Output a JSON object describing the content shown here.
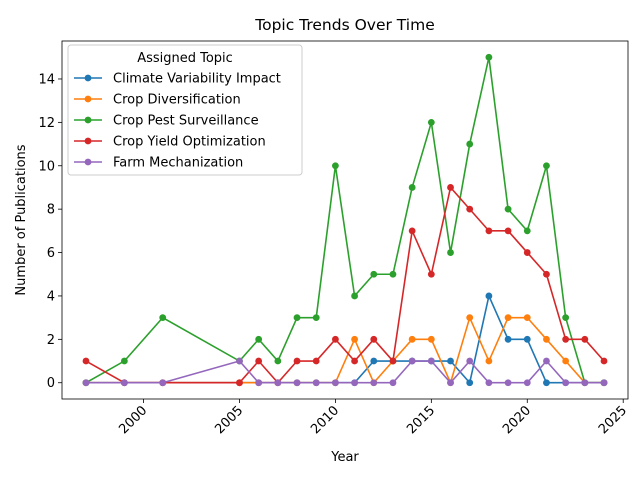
{
  "chart_data": {
    "type": "line",
    "title": "Topic Trends Over Time",
    "xlabel": "Year",
    "ylabel": "Number of Publications",
    "xlim": [
      1995.75,
      2025.25
    ],
    "ylim": [
      -0.75,
      15.75
    ],
    "xticks": [
      2000,
      2005,
      2010,
      2015,
      2020,
      2025
    ],
    "yticks": [
      0,
      2,
      4,
      6,
      8,
      10,
      12,
      14
    ],
    "legend": {
      "title": "Assigned Topic",
      "placement": "upper-left"
    },
    "grid": false,
    "series": [
      {
        "name": "Climate Variability Impact",
        "color": "#1f77b4",
        "x": [
          1997,
          1999,
          2001,
          2005,
          2006,
          2007,
          2008,
          2009,
          2010,
          2011,
          2012,
          2013,
          2014,
          2015,
          2016,
          2017,
          2018,
          2019,
          2020,
          2021,
          2022,
          2023,
          2024
        ],
        "y": [
          0,
          0,
          0,
          0,
          0,
          0,
          0,
          0,
          0,
          0,
          1,
          1,
          1,
          1,
          1,
          0,
          4,
          2,
          2,
          0,
          0,
          0,
          0
        ]
      },
      {
        "name": "Crop Diversification",
        "color": "#ff7f0e",
        "x": [
          1997,
          1999,
          2001,
          2005,
          2006,
          2007,
          2008,
          2009,
          2010,
          2011,
          2012,
          2013,
          2014,
          2015,
          2016,
          2017,
          2018,
          2019,
          2020,
          2021,
          2022,
          2023,
          2024
        ],
        "y": [
          0,
          0,
          0,
          0,
          0,
          0,
          0,
          0,
          0,
          2,
          0,
          1,
          2,
          2,
          0,
          3,
          1,
          3,
          3,
          2,
          1,
          0,
          0
        ]
      },
      {
        "name": "Crop Pest Surveillance",
        "color": "#2ca02c",
        "x": [
          1997,
          1999,
          2001,
          2005,
          2006,
          2007,
          2008,
          2009,
          2010,
          2011,
          2012,
          2013,
          2014,
          2015,
          2016,
          2017,
          2018,
          2019,
          2020,
          2021,
          2022,
          2023,
          2024
        ],
        "y": [
          0,
          1,
          3,
          1,
          2,
          1,
          3,
          3,
          10,
          4,
          5,
          5,
          9,
          12,
          6,
          11,
          15,
          8,
          7,
          10,
          3,
          0,
          0
        ]
      },
      {
        "name": "Crop Yield Optimization",
        "color": "#d62728",
        "x": [
          1997,
          1999,
          2001,
          2005,
          2006,
          2007,
          2008,
          2009,
          2010,
          2011,
          2012,
          2013,
          2014,
          2015,
          2016,
          2017,
          2018,
          2019,
          2020,
          2021,
          2022,
          2023,
          2024
        ],
        "y": [
          1,
          0,
          0,
          0,
          1,
          0,
          1,
          1,
          2,
          1,
          2,
          1,
          7,
          5,
          9,
          8,
          7,
          7,
          6,
          5,
          2,
          2,
          1
        ]
      },
      {
        "name": "Farm Mechanization",
        "color": "#9467bd",
        "x": [
          1997,
          1999,
          2001,
          2005,
          2006,
          2007,
          2008,
          2009,
          2010,
          2011,
          2012,
          2013,
          2014,
          2015,
          2016,
          2017,
          2018,
          2019,
          2020,
          2021,
          2022,
          2023,
          2024
        ],
        "y": [
          0,
          0,
          0,
          1,
          0,
          0,
          0,
          0,
          0,
          0,
          0,
          0,
          1,
          1,
          0,
          1,
          0,
          0,
          0,
          1,
          0,
          0,
          0
        ]
      }
    ]
  }
}
